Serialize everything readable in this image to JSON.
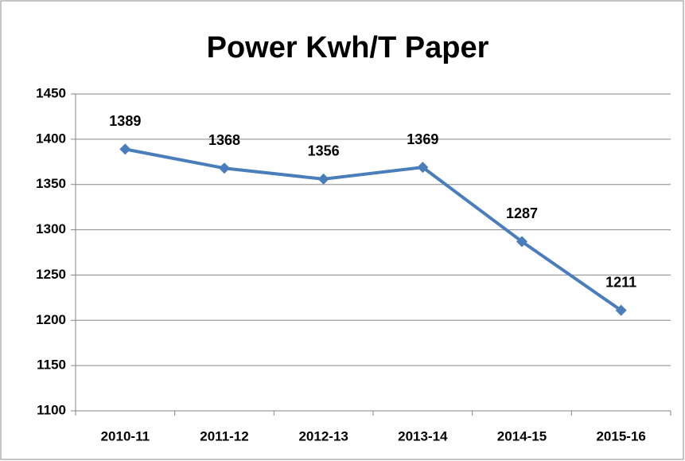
{
  "chart_data": {
    "type": "line",
    "title": "Power Kwh/T Paper",
    "categories": [
      "2010-11",
      "2011-12",
      "2012-13",
      "2013-14",
      "2014-15",
      "2015-16"
    ],
    "series": [
      {
        "name": "Power Kwh/T Paper",
        "color": "#4a7ebb",
        "values": [
          1389,
          1368,
          1356,
          1369,
          1287,
          1211
        ]
      }
    ],
    "ylim": [
      1100,
      1450
    ],
    "yticks": [
      1100,
      1150,
      1200,
      1250,
      1300,
      1350,
      1400,
      1450
    ],
    "grid": true
  }
}
